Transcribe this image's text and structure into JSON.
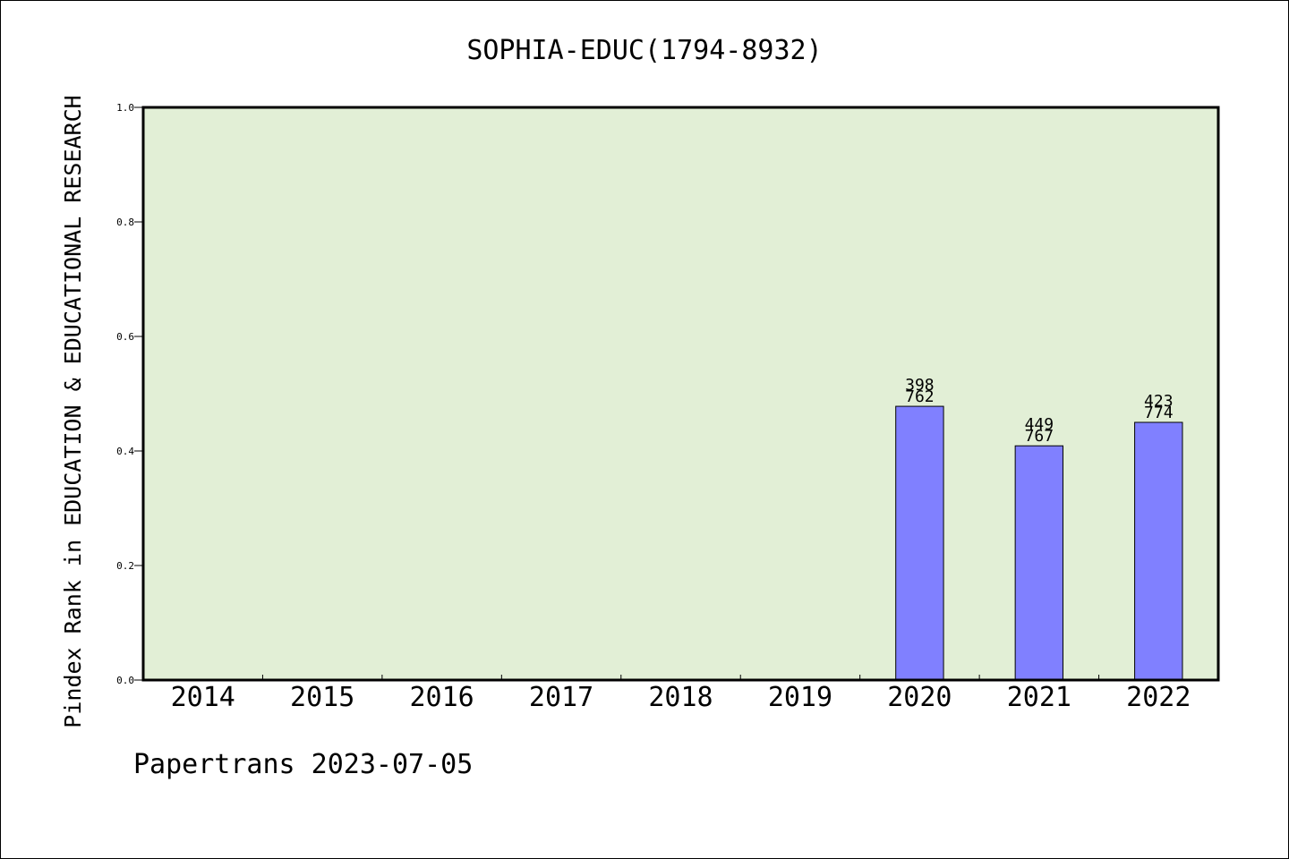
{
  "chart_data": {
    "type": "bar",
    "title": "SOPHIA-EDUC(1794-8932)",
    "ylabel": "Pindex Rank in EDUCATION & EDUCATIONAL RESEARCH",
    "xlabel": "",
    "categories": [
      "2014",
      "2015",
      "2016",
      "2017",
      "2018",
      "2019",
      "2020",
      "2021",
      "2022"
    ],
    "values": [
      null,
      null,
      null,
      null,
      null,
      null,
      0.478,
      0.409,
      0.45
    ],
    "bar_labels": [
      null,
      null,
      null,
      null,
      null,
      null,
      {
        "top": "398",
        "bottom": "762"
      },
      {
        "top": "449",
        "bottom": "767"
      },
      {
        "top": "423",
        "bottom": "774"
      }
    ],
    "ylim": [
      0,
      1.0
    ],
    "yticks": [
      "0.0",
      "0.2",
      "0.4",
      "0.6",
      "0.8",
      "1.0"
    ],
    "grid": false,
    "legend": "none",
    "colors": {
      "plot_background": "#e2efd6",
      "bar_fill": "#8080ff",
      "bar_stroke": "#000000",
      "axis": "#000000"
    }
  },
  "footer": {
    "text": "Papertrans 2023-07-05"
  }
}
